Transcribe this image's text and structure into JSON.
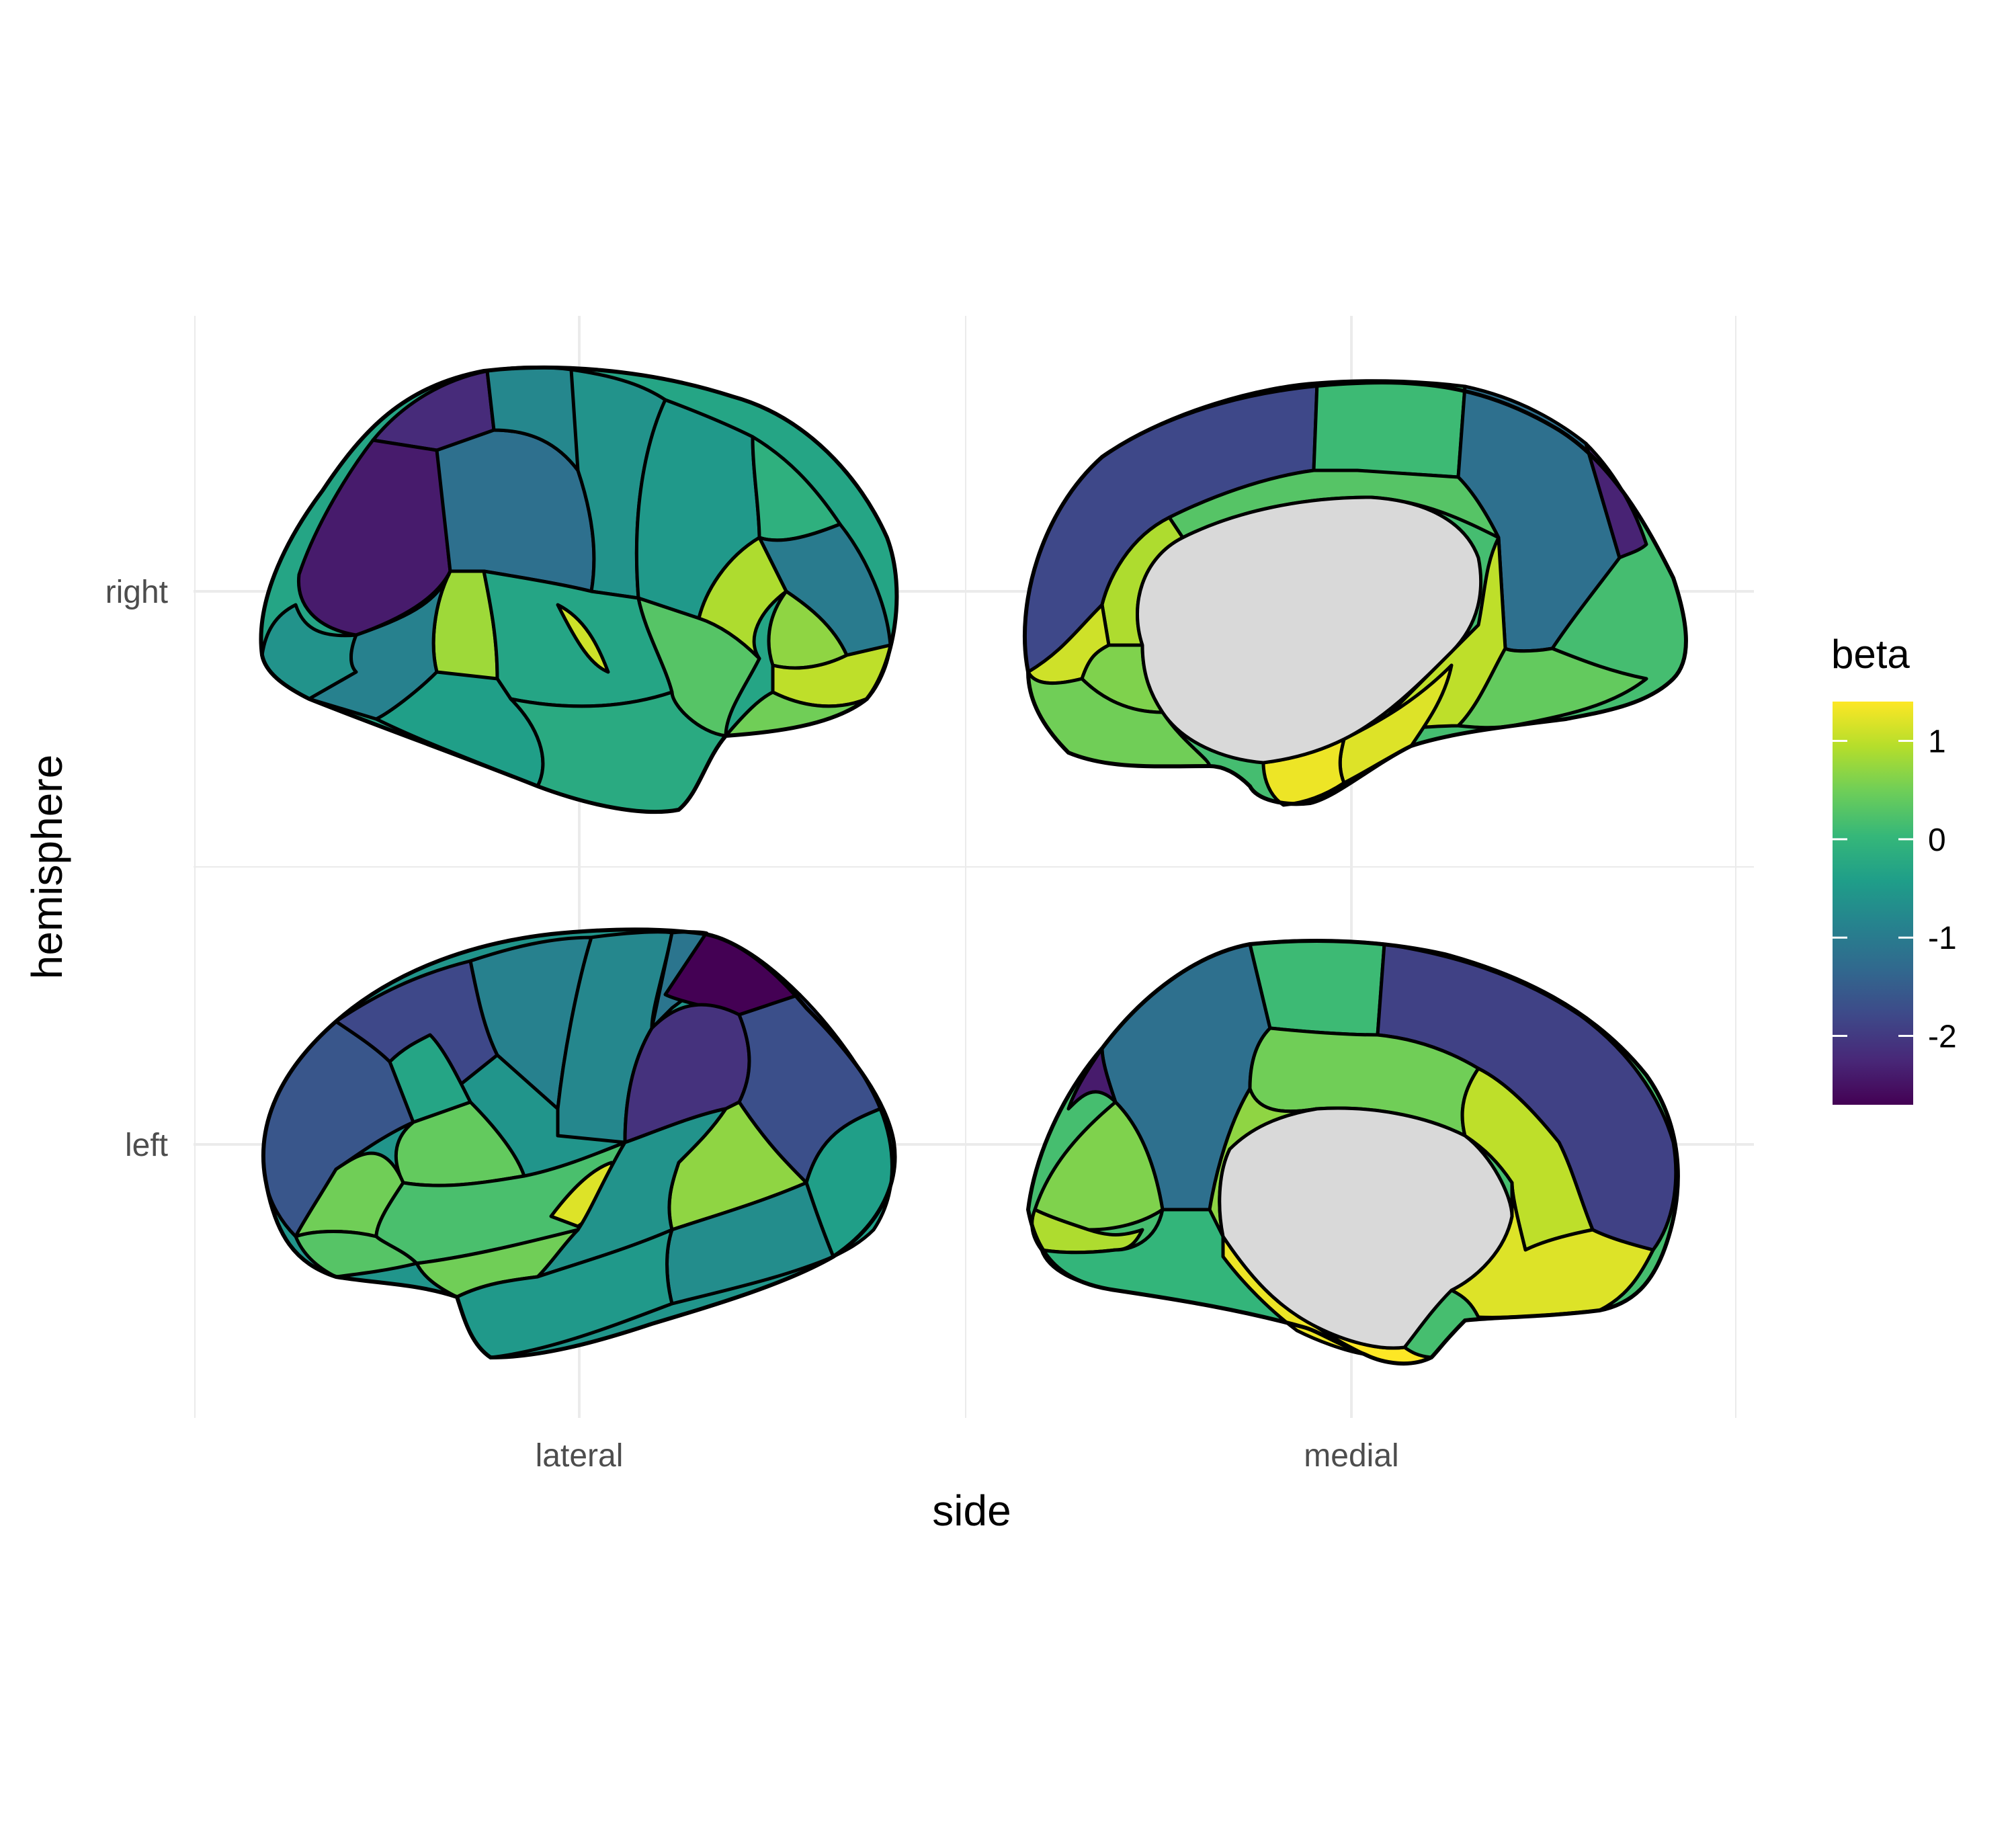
{
  "chart_data": {
    "type": "heatmap",
    "xlabel": "side",
    "ylabel": "hemisphere",
    "x_categories": [
      "lateral",
      "medial"
    ],
    "y_categories": [
      "right",
      "left"
    ],
    "legend": {
      "title": "beta",
      "placement": "right",
      "range": [
        -2.7,
        1.4
      ],
      "ticks": [
        1,
        0,
        -1,
        -2
      ],
      "tick_labels": [
        "1",
        "0",
        "-1",
        "-2"
      ],
      "colors": [
        "#440154",
        "#482878",
        "#3e4989",
        "#31688e",
        "#26828e",
        "#1f9e89",
        "#35b779",
        "#6ece58",
        "#b5de2b",
        "#fde725"
      ]
    },
    "grid": true,
    "panels": [
      {
        "hemisphere": "right",
        "side": "lateral",
        "regions": [
          {
            "id": "r-lat-1",
            "beta": -2.2
          },
          {
            "id": "r-lat-2",
            "beta": -2.4
          },
          {
            "id": "r-lat-3",
            "beta": -1.2
          },
          {
            "id": "r-lat-4",
            "beta": -0.8
          },
          {
            "id": "r-lat-5",
            "beta": -0.6
          },
          {
            "id": "r-lat-6",
            "beta": -0.5
          },
          {
            "id": "r-lat-7",
            "beta": -0.1
          },
          {
            "id": "r-lat-8",
            "beta": -1.0
          },
          {
            "id": "r-lat-9",
            "beta": 0.8
          },
          {
            "id": "r-lat-10",
            "beta": -0.3
          },
          {
            "id": "r-lat-11",
            "beta": 1.1
          },
          {
            "id": "r-lat-12",
            "beta": 0.3
          },
          {
            "id": "r-lat-13",
            "beta": 0.9
          },
          {
            "id": "r-lat-14",
            "beta": 0.7
          },
          {
            "id": "r-lat-15",
            "beta": 1.0
          },
          {
            "id": "r-lat-16",
            "beta": 0.5
          },
          {
            "id": "r-lat-17",
            "beta": -0.6
          },
          {
            "id": "r-lat-18",
            "beta": -0.9
          },
          {
            "id": "r-lat-19",
            "beta": -0.4
          },
          {
            "id": "r-lat-20",
            "beta": -0.2
          }
        ]
      },
      {
        "hemisphere": "right",
        "side": "medial",
        "regions": [
          {
            "id": "r-med-1",
            "beta": -1.8
          },
          {
            "id": "r-med-2",
            "beta": 0.1
          },
          {
            "id": "r-med-3",
            "beta": -1.2
          },
          {
            "id": "r-med-4",
            "beta": 0.3
          },
          {
            "id": "r-med-5",
            "beta": 0.9
          },
          {
            "id": "r-med-6",
            "beta": 0.6
          },
          {
            "id": "r-med-7",
            "beta": 1.1
          },
          {
            "id": "r-med-8",
            "beta": 0.5
          },
          {
            "id": "r-med-9",
            "beta": 1.0
          },
          {
            "id": "r-med-10",
            "beta": 0.4
          },
          {
            "id": "r-med-11",
            "beta": 1.2
          },
          {
            "id": "r-med-12",
            "beta": 1.3
          },
          {
            "id": "r-med-13",
            "beta": -2.3
          }
        ]
      },
      {
        "hemisphere": "left",
        "side": "lateral",
        "regions": [
          {
            "id": "l-lat-1",
            "beta": -1.6
          },
          {
            "id": "l-lat-2",
            "beta": -1.8
          },
          {
            "id": "l-lat-3",
            "beta": -0.3
          },
          {
            "id": "l-lat-4",
            "beta": -0.9
          },
          {
            "id": "l-lat-5",
            "beta": -0.8
          },
          {
            "id": "l-lat-6",
            "beta": -1.1
          },
          {
            "id": "l-lat-7",
            "beta": -2.7
          },
          {
            "id": "l-lat-8",
            "beta": -2.1
          },
          {
            "id": "l-lat-9",
            "beta": -1.7
          },
          {
            "id": "l-lat-10",
            "beta": 0.4
          },
          {
            "id": "l-lat-11",
            "beta": 0.5
          },
          {
            "id": "l-lat-12",
            "beta": 0.2
          },
          {
            "id": "l-lat-13",
            "beta": 1.2
          },
          {
            "id": "l-lat-14",
            "beta": 0.7
          },
          {
            "id": "l-lat-15",
            "beta": -0.6
          },
          {
            "id": "l-lat-16",
            "beta": -0.4
          },
          {
            "id": "l-lat-17",
            "beta": -0.7
          },
          {
            "id": "l-lat-18",
            "beta": 0.3
          },
          {
            "id": "l-lat-19",
            "beta": 0.5
          },
          {
            "id": "l-lat-20",
            "beta": -0.5
          }
        ]
      },
      {
        "hemisphere": "left",
        "side": "medial",
        "regions": [
          {
            "id": "l-med-1",
            "beta": -1.2
          },
          {
            "id": "l-med-2",
            "beta": 0.1
          },
          {
            "id": "l-med-3",
            "beta": -1.9
          },
          {
            "id": "l-med-4",
            "beta": 0.5
          },
          {
            "id": "l-med-5",
            "beta": 1.0
          },
          {
            "id": "l-med-6",
            "beta": 0.7
          },
          {
            "id": "l-med-7",
            "beta": 1.2
          },
          {
            "id": "l-med-8",
            "beta": 0.6
          },
          {
            "id": "l-med-9",
            "beta": 0.9
          },
          {
            "id": "l-med-10",
            "beta": 0.0
          },
          {
            "id": "l-med-11",
            "beta": 1.3
          },
          {
            "id": "l-med-12",
            "beta": 1.4
          },
          {
            "id": "l-med-13",
            "beta": -2.4
          }
        ]
      }
    ]
  },
  "colors": {
    "medial_wall": "#d9d9d9",
    "outline": "#000000",
    "grid": "#ebebeb",
    "tick_text": "#4d4d4d"
  }
}
